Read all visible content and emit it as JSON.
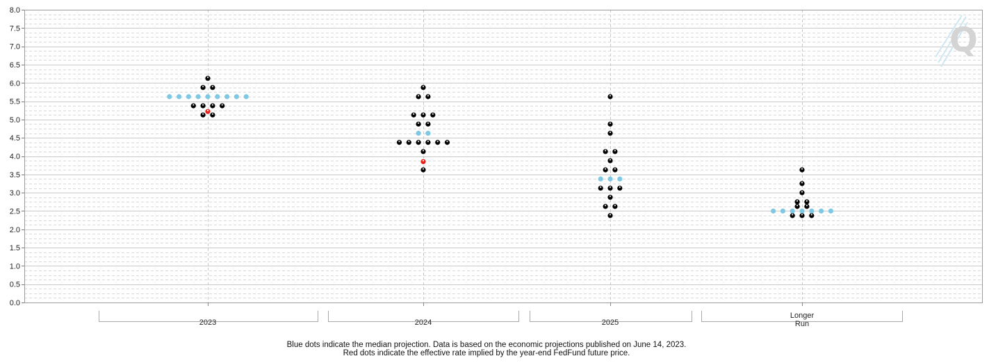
{
  "chart_data": {
    "type": "scatter",
    "title": "",
    "xlabel": "",
    "ylabel": "",
    "ylim": [
      0,
      8
    ],
    "y_ticks": [
      "0.0",
      "0.5",
      "1.0",
      "1.5",
      "2.0",
      "2.5",
      "3.0",
      "3.5",
      "4.0",
      "4.5",
      "5.0",
      "5.5",
      "6.0",
      "6.5",
      "7.0",
      "7.5",
      "8.0"
    ],
    "grid": true,
    "categories": [
      {
        "label": "2023",
        "label_lines": [
          "2023"
        ]
      },
      {
        "label": "2024",
        "label_lines": [
          "2024"
        ]
      },
      {
        "label": "2025",
        "label_lines": [
          "2025"
        ]
      },
      {
        "label": "Longer Run",
        "label_lines": [
          "Longer",
          "Run"
        ]
      }
    ],
    "series": [
      {
        "color": "#000000",
        "points": [
          {
            "category": "2023",
            "y": 6.125,
            "count": 1
          },
          {
            "category": "2023",
            "y": 5.875,
            "count": 2
          },
          {
            "category": "2023",
            "y": 5.375,
            "count": 4
          },
          {
            "category": "2023",
            "y": 5.125,
            "count": 2
          },
          {
            "category": "2024",
            "y": 5.875,
            "count": 1
          },
          {
            "category": "2024",
            "y": 5.625,
            "count": 2
          },
          {
            "category": "2024",
            "y": 5.125,
            "count": 3
          },
          {
            "category": "2024",
            "y": 4.875,
            "count": 2
          },
          {
            "category": "2024",
            "y": 4.375,
            "count": 6
          },
          {
            "category": "2024",
            "y": 4.125,
            "count": 1
          },
          {
            "category": "2024",
            "y": 3.625,
            "count": 1
          },
          {
            "category": "2025",
            "y": 5.625,
            "count": 1
          },
          {
            "category": "2025",
            "y": 4.875,
            "count": 1
          },
          {
            "category": "2025",
            "y": 4.625,
            "count": 1
          },
          {
            "category": "2025",
            "y": 4.125,
            "count": 2
          },
          {
            "category": "2025",
            "y": 3.875,
            "count": 1
          },
          {
            "category": "2025",
            "y": 3.625,
            "count": 2
          },
          {
            "category": "2025",
            "y": 3.125,
            "count": 3
          },
          {
            "category": "2025",
            "y": 2.875,
            "count": 1
          },
          {
            "category": "2025",
            "y": 2.625,
            "count": 2
          },
          {
            "category": "2025",
            "y": 2.375,
            "count": 1
          },
          {
            "category": "Longer Run",
            "y": 3.625,
            "count": 1
          },
          {
            "category": "Longer Run",
            "y": 3.25,
            "count": 1
          },
          {
            "category": "Longer Run",
            "y": 3.0,
            "count": 1
          },
          {
            "category": "Longer Run",
            "y": 2.75,
            "count": 2
          },
          {
            "category": "Longer Run",
            "y": 2.625,
            "count": 2
          },
          {
            "category": "Longer Run",
            "y": 2.375,
            "count": 3
          }
        ]
      },
      {
        "color": "#7ec8e3",
        "points": [
          {
            "category": "2023",
            "y": 5.625,
            "count": 9
          },
          {
            "category": "2024",
            "y": 4.625,
            "count": 2
          },
          {
            "category": "2025",
            "y": 3.375,
            "count": 3
          },
          {
            "category": "Longer Run",
            "y": 2.5,
            "count": 7
          }
        ]
      },
      {
        "color": "#e8201a",
        "points": [
          {
            "category": "2023",
            "y": 5.22,
            "count": 1
          },
          {
            "category": "2024",
            "y": 3.85,
            "count": 1
          }
        ]
      }
    ]
  },
  "footnote": {
    "line1": "Blue dots indicate the median projection. Data is based on the economic projections published on June 14, 2023.",
    "line2": "Red dots indicate the effective rate implied by the year-end FedFund future price."
  },
  "watermark": {
    "letter": "Q"
  }
}
